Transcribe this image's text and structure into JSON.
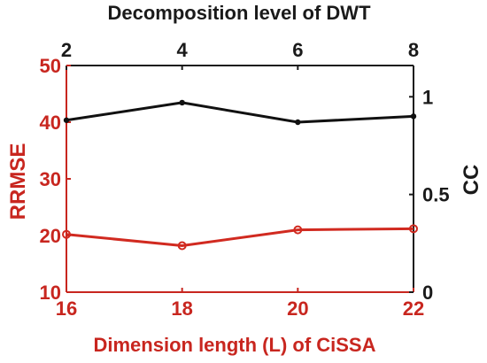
{
  "chart_data": {
    "type": "line",
    "top_axis": {
      "label": "Decomposition level of DWT",
      "ticks": [
        "2",
        "4",
        "6",
        "8"
      ],
      "range": [
        2,
        8
      ]
    },
    "bottom_axis": {
      "label": "Dimension length (L) of CiSSA",
      "ticks": [
        "16",
        "18",
        "20",
        "22"
      ],
      "range": [
        16,
        22
      ]
    },
    "left_axis": {
      "label": "RRMSE",
      "ticks": [
        "10",
        "20",
        "30",
        "40",
        "50"
      ],
      "range": [
        10,
        50
      ]
    },
    "right_axis": {
      "label": "CC",
      "ticks": [
        "0",
        "0.5",
        "1"
      ],
      "range": [
        0,
        1.16
      ]
    },
    "series": [
      {
        "axes": [
          "bottom",
          "left"
        ],
        "color": "#d12a20",
        "x": [
          16,
          18,
          20,
          22
        ],
        "y": [
          20.2,
          18.2,
          21.0,
          21.2
        ]
      },
      {
        "axes": [
          "top",
          "right"
        ],
        "color": "#111111",
        "x": [
          2,
          4,
          6,
          8
        ],
        "y": [
          0.88,
          0.97,
          0.87,
          0.9
        ]
      }
    ],
    "grid": false
  }
}
